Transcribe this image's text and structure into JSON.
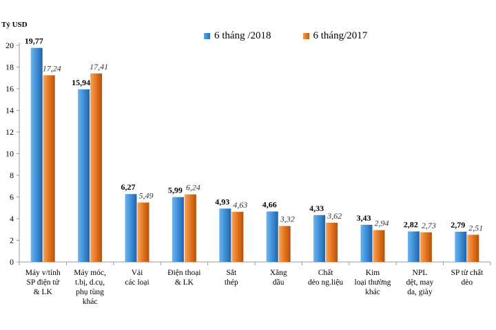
{
  "chart_data": {
    "type": "bar",
    "ylabel": "Tỷ USD",
    "ylim": [
      0,
      20
    ],
    "yticks": [
      0,
      2,
      4,
      6,
      8,
      10,
      12,
      14,
      16,
      18,
      20
    ],
    "grid": false,
    "legend_position": "top",
    "categories": [
      [
        "Máy v/tính",
        "SP điện tử",
        "& LK"
      ],
      [
        "Máy móc,",
        "t.bị, d.cụ,",
        "phụ tùng",
        "khác"
      ],
      [
        "Vải",
        "các loại"
      ],
      [
        "Điện thoại",
        "& LK"
      ],
      [
        "Sắt",
        "thép"
      ],
      [
        "Xăng",
        "dầu"
      ],
      [
        "Chất",
        "dẻo ng.liệu"
      ],
      [
        "Kim",
        "loại thường",
        "khác"
      ],
      [
        "NPL",
        "dệt, may",
        "da, giày"
      ],
      [
        "SP từ chất",
        "dẻo"
      ]
    ],
    "series": [
      {
        "name": "6 tháng /2018",
        "color": "#3f8fd6",
        "labels": [
          "19,77",
          "15,94",
          "6,27",
          "5,99",
          "4,93",
          "4,66",
          "4,33",
          "3,43",
          "2,82",
          "2,79"
        ],
        "values": [
          19.77,
          15.94,
          6.27,
          5.99,
          4.93,
          4.66,
          4.33,
          3.43,
          2.82,
          2.79
        ]
      },
      {
        "name": "6 tháng/2017",
        "color": "#e3741f",
        "labels": [
          "17,24",
          "17,41",
          "5,49",
          "6,24",
          "4,63",
          "3,32",
          "3,62",
          "2,94",
          "2,73",
          "2,51"
        ],
        "values": [
          17.24,
          17.41,
          5.49,
          6.24,
          4.63,
          3.32,
          3.62,
          2.94,
          2.73,
          2.51
        ]
      }
    ]
  }
}
